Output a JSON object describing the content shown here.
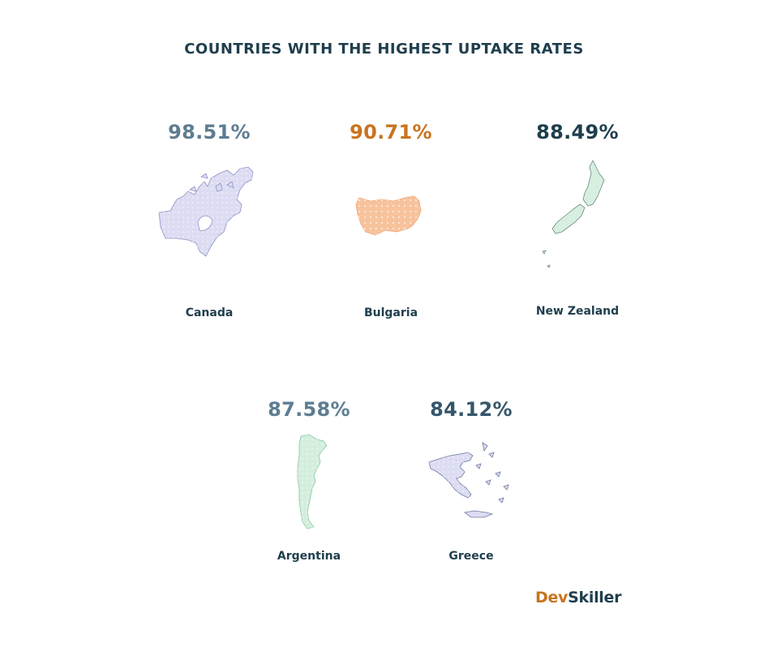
{
  "title": "COUNTRIES WITH THE HIGHEST UPTAKE RATES",
  "countries": [
    {
      "name": "Canada",
      "rate": "98.51%",
      "color": "#5e7d91",
      "fill": "#dcdcf3",
      "stroke": "#8f91c4"
    },
    {
      "name": "Bulgaria",
      "rate": "90.71%",
      "color": "#c8741f",
      "fill": "#f7c39c",
      "stroke": "#f0a877"
    },
    {
      "name": "New Zealand",
      "rate": "88.49%",
      "color": "#1f3e4d",
      "fill": "#d6efe1",
      "stroke": "#6a8a7e"
    },
    {
      "name": "Argentina",
      "rate": "87.58%",
      "color": "#5e7d91",
      "fill": "#d4eedd",
      "stroke": "#88c7a3"
    },
    {
      "name": "Greece",
      "rate": "84.12%",
      "color": "#35566a",
      "fill": "#dcdcf3",
      "stroke": "#6e7aa0"
    }
  ],
  "brand": {
    "part1": "Dev",
    "part2": "Skiller"
  }
}
